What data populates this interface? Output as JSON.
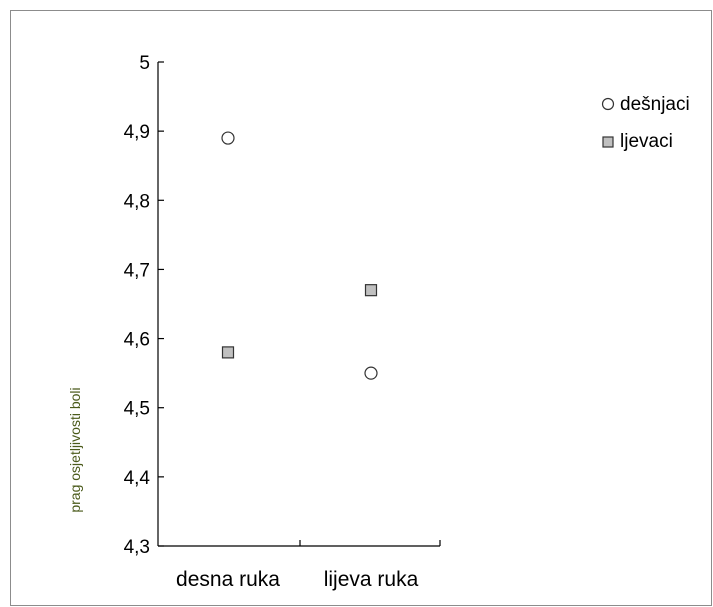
{
  "chart_data": {
    "type": "scatter",
    "title": "",
    "xlabel": "",
    "ylabel": "prag osjetljivosti boli",
    "categories": [
      "desna ruka",
      "lijeva ruka"
    ],
    "ylim": [
      4.3,
      5.0
    ],
    "yticks": [
      4.3,
      4.4,
      4.5,
      4.6,
      4.7,
      4.8,
      4.9,
      5.0
    ],
    "ytick_labels": [
      "4,3",
      "4,4",
      "4,5",
      "4,6",
      "4,7",
      "4,8",
      "4,9",
      "5"
    ],
    "grid": false,
    "legend_position": "top-right",
    "series": [
      {
        "name": "dešnjaci",
        "marker": "circle",
        "color": "#ffffff",
        "values": [
          4.89,
          4.55
        ]
      },
      {
        "name": "ljevaci",
        "marker": "square",
        "color": "#c0c0c0",
        "values": [
          4.58,
          4.67
        ]
      }
    ],
    "colors": {
      "axis": "#000000",
      "ylabel": "#4a5a1a",
      "marker_stroke": "#333333"
    }
  }
}
